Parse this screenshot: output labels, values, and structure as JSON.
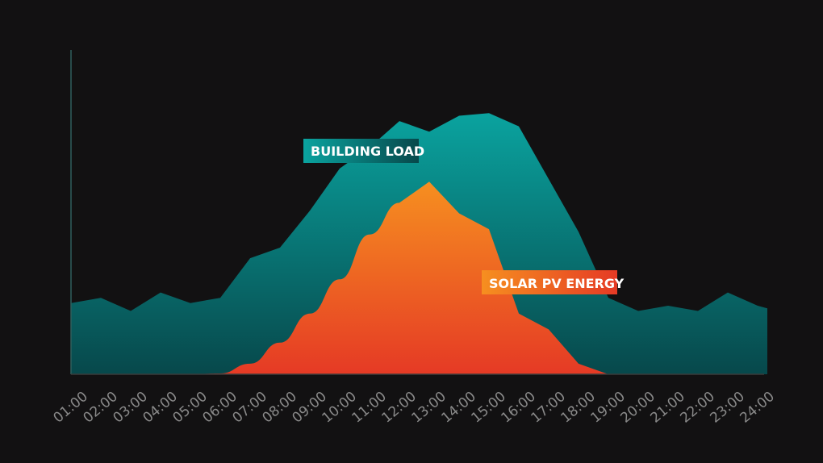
{
  "chart_data": {
    "type": "area",
    "title": "",
    "xlabel": "",
    "ylabel": "",
    "x": [
      "01:00",
      "02:00",
      "03:00",
      "04:00",
      "05:00",
      "06:00",
      "07:00",
      "08:00",
      "09:00",
      "10:00",
      "11:00",
      "12:00",
      "13:00",
      "14:00",
      "15:00",
      "16:00",
      "17:00",
      "18:00",
      "19:00",
      "20:00",
      "21:00",
      "22:00",
      "23:00",
      "24:00"
    ],
    "ylim": [
      0,
      100
    ],
    "grid": false,
    "legend": "inline labels",
    "series": [
      {
        "name": "BUILDING LOAD",
        "color_top": "#0aa39f",
        "color_bottom": "#07484b",
        "values": [
          27,
          29,
          24,
          31,
          27,
          29,
          44,
          48,
          62,
          78,
          86,
          96,
          92,
          98,
          99,
          94,
          74,
          54,
          29,
          24,
          26,
          24,
          31,
          26
        ],
        "end_value": 25
      },
      {
        "name": "SOLAR PV ENERGY",
        "color_top": "#f68f20",
        "color_bottom": "#e53a25",
        "values": [
          0,
          0,
          0,
          0,
          0,
          0.3,
          4,
          12,
          23,
          36,
          53,
          65,
          73,
          61,
          55,
          23,
          17,
          4,
          0,
          0,
          0,
          0,
          0,
          0
        ]
      }
    ]
  }
}
